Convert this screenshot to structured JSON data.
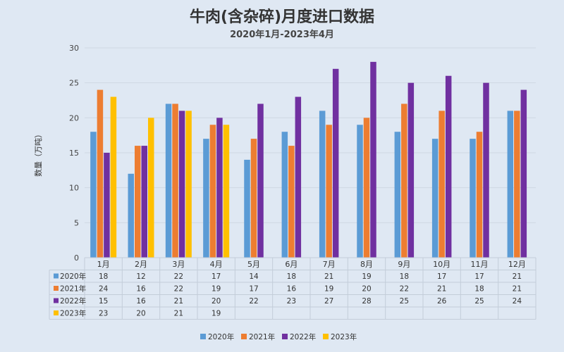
{
  "chart_data": {
    "type": "bar",
    "title": "牛肉(含杂碎)月度进口数据",
    "subtitle": "2020年1月-2023年4月",
    "ylabel": "数量（万吨）",
    "xlabel": "",
    "ylim": [
      0,
      30
    ],
    "yticks": [
      0,
      5,
      10,
      15,
      20,
      25,
      30
    ],
    "grid": true,
    "legend_position": "bottom",
    "categories": [
      "1月",
      "2月",
      "3月",
      "4月",
      "5月",
      "6月",
      "7月",
      "8月",
      "9月",
      "10月",
      "11月",
      "12月"
    ],
    "series": [
      {
        "name": "2020年",
        "color": "#5b9bd5",
        "values": [
          18,
          12,
          22,
          17,
          14,
          18,
          21,
          19,
          18,
          17,
          17,
          21
        ]
      },
      {
        "name": "2021年",
        "color": "#ed7d31",
        "values": [
          24,
          16,
          22,
          19,
          17,
          16,
          19,
          20,
          22,
          21,
          18,
          21
        ]
      },
      {
        "name": "2022年",
        "color": "#7030a0",
        "values": [
          15,
          16,
          21,
          20,
          22,
          23,
          27,
          28,
          25,
          26,
          25,
          24
        ]
      },
      {
        "name": "2023年",
        "color": "#ffc000",
        "values": [
          23,
          20,
          21,
          19,
          null,
          null,
          null,
          null,
          null,
          null,
          null,
          null
        ]
      }
    ]
  }
}
